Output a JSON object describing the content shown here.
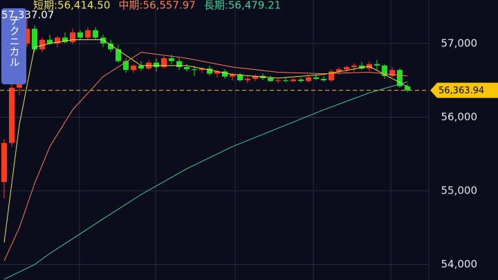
{
  "chart_data": {
    "type": "candlestick",
    "ylim": [
      53790,
      57590
    ],
    "yticks": [
      {
        "value": 54000,
        "label": "54,000"
      },
      {
        "value": 55000,
        "label": "55,000"
      },
      {
        "value": 56000,
        "label": "56,000"
      },
      {
        "value": 57000,
        "label": "57,000"
      }
    ],
    "grid": true,
    "up_color": "#ff3b1f",
    "down_color": "#22e022",
    "high_marker": {
      "value": 57337.07,
      "label": "57,337.07"
    },
    "current_price": {
      "value": 56363.94,
      "label": "56,363.94"
    },
    "button": "テクニカル",
    "ohlc": [
      [
        55120,
        55700,
        54900,
        55650
      ],
      [
        55650,
        56450,
        55600,
        56400
      ],
      [
        56400,
        57100,
        56300,
        57000
      ],
      [
        57000,
        57337,
        56950,
        57200
      ],
      [
        57200,
        57250,
        56880,
        56920
      ],
      [
        56920,
        57080,
        56880,
        57050
      ],
      [
        57050,
        57120,
        56980,
        57000
      ],
      [
        57000,
        57100,
        56950,
        57080
      ],
      [
        57080,
        57150,
        57000,
        57020
      ],
      [
        57020,
        57200,
        56990,
        57150
      ],
      [
        57150,
        57180,
        57050,
        57080
      ],
      [
        57080,
        57220,
        57050,
        57180
      ],
      [
        57180,
        57220,
        57050,
        57080
      ],
      [
        57080,
        57120,
        56950,
        57000
      ],
      [
        57000,
        57050,
        56880,
        56920
      ],
      [
        56920,
        56980,
        56740,
        56760
      ],
      [
        56760,
        56800,
        56600,
        56640
      ],
      [
        56640,
        56720,
        56600,
        56700
      ],
      [
        56700,
        56760,
        56630,
        56660
      ],
      [
        56660,
        56780,
        56640,
        56740
      ],
      [
        56740,
        56800,
        56620,
        56680
      ],
      [
        56680,
        56830,
        56660,
        56800
      ],
      [
        56800,
        56850,
        56720,
        56760
      ],
      [
        56760,
        56800,
        56640,
        56680
      ],
      [
        56680,
        56720,
        56620,
        56650
      ],
      [
        56650,
        56700,
        56560,
        56640
      ],
      [
        56640,
        56680,
        56600,
        56660
      ],
      [
        56660,
        56700,
        56560,
        56590
      ],
      [
        56590,
        56640,
        56540,
        56620
      ],
      [
        56620,
        56650,
        56520,
        56550
      ],
      [
        56550,
        56600,
        56500,
        56580
      ],
      [
        56580,
        56600,
        56480,
        56500
      ],
      [
        56500,
        56560,
        56460,
        56520
      ],
      [
        56520,
        56580,
        56490,
        56560
      ],
      [
        56560,
        56590,
        56500,
        56530
      ],
      [
        56530,
        56560,
        56480,
        56490
      ],
      [
        56490,
        56520,
        56460,
        56500
      ],
      [
        56500,
        56540,
        56470,
        56490
      ],
      [
        56490,
        56530,
        56470,
        56510
      ],
      [
        56510,
        56540,
        56470,
        56490
      ],
      [
        56490,
        56560,
        56470,
        56540
      ],
      [
        56540,
        56580,
        56500,
        56520
      ],
      [
        56520,
        56560,
        56480,
        56500
      ],
      [
        56500,
        56650,
        56480,
        56620
      ],
      [
        56620,
        56680,
        56580,
        56650
      ],
      [
        56650,
        56700,
        56600,
        56680
      ],
      [
        56680,
        56730,
        56620,
        56700
      ],
      [
        56700,
        56750,
        56640,
        56660
      ],
      [
        56660,
        56750,
        56620,
        56720
      ],
      [
        56720,
        56780,
        56640,
        56700
      ],
      [
        56700,
        56720,
        56520,
        56560
      ],
      [
        56560,
        56680,
        56540,
        56640
      ],
      [
        56640,
        56660,
        56400,
        56420
      ],
      [
        56420,
        56450,
        56340,
        56364
      ]
    ],
    "series": [
      {
        "name": "短期:56,414.50",
        "color": "#f2e34a",
        "x": [
          0,
          2,
          4,
          6,
          9,
          13,
          18,
          24,
          30,
          36,
          42,
          48,
          53
        ],
        "values": [
          54300,
          55900,
          56950,
          57000,
          57050,
          57050,
          56700,
          56700,
          56580,
          56530,
          56580,
          56690,
          56414.5
        ]
      },
      {
        "name": "中期:56,557.97",
        "color": "#ff7f50",
        "x": [
          0,
          2,
          4,
          6,
          9,
          13,
          18,
          24,
          30,
          36,
          42,
          48,
          53
        ],
        "values": [
          54050,
          54500,
          55100,
          55600,
          56100,
          56550,
          56880,
          56800,
          56680,
          56610,
          56590,
          56610,
          56557.97
        ]
      },
      {
        "name": "長期:56,479.21",
        "color": "#3fd19b",
        "x": [
          0,
          2,
          4,
          6,
          9,
          13,
          18,
          24,
          30,
          36,
          42,
          48,
          53
        ],
        "values": [
          53800,
          53900,
          54000,
          54150,
          54350,
          54620,
          54950,
          55300,
          55600,
          55850,
          56100,
          56330,
          56479.21
        ]
      }
    ]
  }
}
